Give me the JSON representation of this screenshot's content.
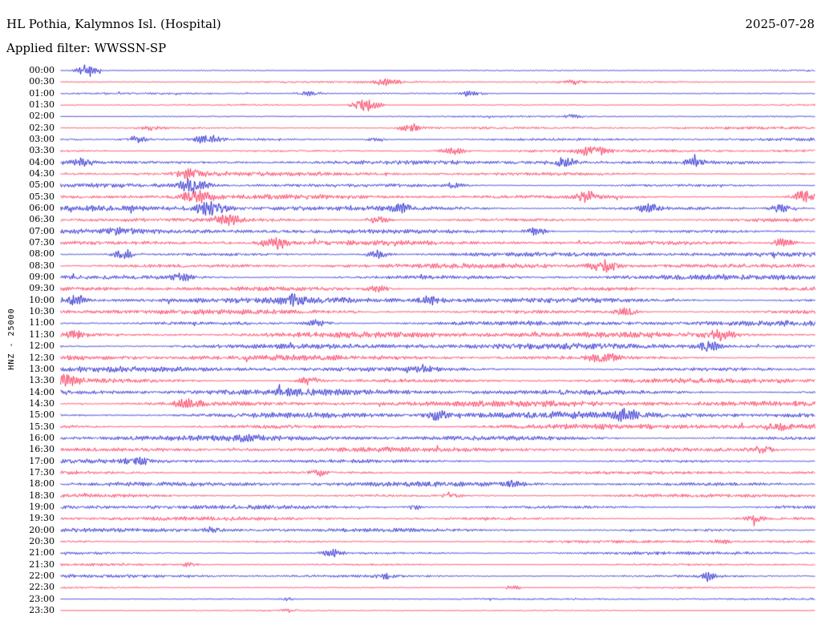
{
  "header": {
    "station_title": "HL Pothia, Kalymnos Isl. (Hospital)",
    "date": "2025-07-28",
    "filter_label": "Applied filter: WWSSN-SP"
  },
  "axis": {
    "channel_scale_label": "HNZ - 25000"
  },
  "chart_data": {
    "type": "line",
    "subtype": "helicorder-seismogram-24h",
    "title": "HL Pothia, Kalymnos Isl. (Hospital)",
    "date": "2025-07-28",
    "filter": "WWSSN-SP",
    "ylabel": "HNZ - 25000",
    "row_interval_minutes": 30,
    "minutes_per_row": 30,
    "grid": false,
    "legend": false,
    "colors": {
      "blue": "#1a1acd",
      "red": "#fa2850",
      "text": "#000000",
      "background": "#ffffff"
    },
    "rows": [
      {
        "time": "00:00",
        "color": "blue",
        "amp": 1.2
      },
      {
        "time": "00:30",
        "color": "red",
        "amp": 1.5
      },
      {
        "time": "01:00",
        "color": "blue",
        "amp": 1.3
      },
      {
        "time": "01:30",
        "color": "red",
        "amp": 1.5
      },
      {
        "time": "02:00",
        "color": "blue",
        "amp": 1.2
      },
      {
        "time": "02:30",
        "color": "red",
        "amp": 2.0
      },
      {
        "time": "03:00",
        "color": "blue",
        "amp": 2.5
      },
      {
        "time": "03:30",
        "color": "red",
        "amp": 2.5
      },
      {
        "time": "04:00",
        "color": "blue",
        "amp": 3.0
      },
      {
        "time": "04:30",
        "color": "red",
        "amp": 3.0
      },
      {
        "time": "05:00",
        "color": "blue",
        "amp": 3.0
      },
      {
        "time": "05:30",
        "color": "red",
        "amp": 3.5
      },
      {
        "time": "06:00",
        "color": "blue",
        "amp": 4.0
      },
      {
        "time": "06:30",
        "color": "red",
        "amp": 3.5
      },
      {
        "time": "07:00",
        "color": "blue",
        "amp": 3.5
      },
      {
        "time": "07:30",
        "color": "red",
        "amp": 3.5
      },
      {
        "time": "08:00",
        "color": "blue",
        "amp": 3.5
      },
      {
        "time": "08:30",
        "color": "red",
        "amp": 3.5
      },
      {
        "time": "09:00",
        "color": "blue",
        "amp": 4.0
      },
      {
        "time": "09:30",
        "color": "red",
        "amp": 4.0
      },
      {
        "time": "10:00",
        "color": "blue",
        "amp": 4.5
      },
      {
        "time": "10:30",
        "color": "red",
        "amp": 4.0
      },
      {
        "time": "11:00",
        "color": "blue",
        "amp": 4.0
      },
      {
        "time": "11:30",
        "color": "red",
        "amp": 4.5
      },
      {
        "time": "12:00",
        "color": "blue",
        "amp": 4.5
      },
      {
        "time": "12:30",
        "color": "red",
        "amp": 4.0
      },
      {
        "time": "13:00",
        "color": "blue",
        "amp": 4.0
      },
      {
        "time": "13:30",
        "color": "red",
        "amp": 4.0
      },
      {
        "time": "14:00",
        "color": "blue",
        "amp": 4.5
      },
      {
        "time": "14:30",
        "color": "red",
        "amp": 4.5
      },
      {
        "time": "15:00",
        "color": "blue",
        "amp": 5.0
      },
      {
        "time": "15:30",
        "color": "red",
        "amp": 4.5
      },
      {
        "time": "16:00",
        "color": "blue",
        "amp": 4.0
      },
      {
        "time": "16:30",
        "color": "red",
        "amp": 3.5
      },
      {
        "time": "17:00",
        "color": "blue",
        "amp": 3.0
      },
      {
        "time": "17:30",
        "color": "red",
        "amp": 3.0
      },
      {
        "time": "18:00",
        "color": "blue",
        "amp": 3.5
      },
      {
        "time": "18:30",
        "color": "red",
        "amp": 3.0
      },
      {
        "time": "19:00",
        "color": "blue",
        "amp": 3.5
      },
      {
        "time": "19:30",
        "color": "red",
        "amp": 3.0
      },
      {
        "time": "20:00",
        "color": "blue",
        "amp": 3.0
      },
      {
        "time": "20:30",
        "color": "red",
        "amp": 2.5
      },
      {
        "time": "21:00",
        "color": "blue",
        "amp": 2.5
      },
      {
        "time": "21:30",
        "color": "red",
        "amp": 2.0
      },
      {
        "time": "22:00",
        "color": "blue",
        "amp": 2.5
      },
      {
        "time": "22:30",
        "color": "red",
        "amp": 1.5
      },
      {
        "time": "23:00",
        "color": "blue",
        "amp": 1.5
      },
      {
        "time": "23:30",
        "color": "red",
        "amp": 1.0
      }
    ],
    "events": [
      {
        "row": 0,
        "x": 0.035,
        "a": 9,
        "w": 9
      },
      {
        "row": 1,
        "x": 0.43,
        "a": 3.5,
        "w": 12
      },
      {
        "row": 1,
        "x": 0.68,
        "a": 3,
        "w": 10
      },
      {
        "row": 2,
        "x": 0.33,
        "a": 3,
        "w": 10
      },
      {
        "row": 2,
        "x": 0.545,
        "a": 4,
        "w": 10
      },
      {
        "row": 3,
        "x": 0.405,
        "a": 8,
        "w": 12
      },
      {
        "row": 4,
        "x": 0.68,
        "a": 2.5,
        "w": 8
      },
      {
        "row": 5,
        "x": 0.12,
        "a": 3,
        "w": 9
      },
      {
        "row": 5,
        "x": 0.465,
        "a": 5,
        "w": 11
      },
      {
        "row": 6,
        "x": 0.1,
        "a": 4,
        "w": 10
      },
      {
        "row": 6,
        "x": 0.195,
        "a": 5,
        "w": 12
      },
      {
        "row": 6,
        "x": 0.42,
        "a": 3,
        "w": 8
      },
      {
        "row": 7,
        "x": 0.52,
        "a": 5,
        "w": 11
      },
      {
        "row": 7,
        "x": 0.705,
        "a": 6,
        "w": 12
      },
      {
        "row": 8,
        "x": 0.03,
        "a": 5,
        "w": 10
      },
      {
        "row": 8,
        "x": 0.665,
        "a": 6,
        "w": 13
      },
      {
        "row": 8,
        "x": 0.84,
        "a": 4,
        "w": 9
      },
      {
        "row": 9,
        "x": 0.17,
        "a": 6,
        "w": 12
      },
      {
        "row": 10,
        "x": 0.175,
        "a": 8,
        "w": 12
      },
      {
        "row": 10,
        "x": 0.52,
        "a": 3,
        "w": 8
      },
      {
        "row": 11,
        "x": 0.18,
        "a": 8,
        "w": 13
      },
      {
        "row": 11,
        "x": 0.7,
        "a": 6,
        "w": 11
      },
      {
        "row": 11,
        "x": 0.985,
        "a": 7,
        "w": 10
      },
      {
        "row": 12,
        "x": 0.2,
        "a": 9,
        "w": 14
      },
      {
        "row": 12,
        "x": 0.45,
        "a": 4,
        "w": 9
      },
      {
        "row": 12,
        "x": 0.78,
        "a": 5,
        "w": 10
      },
      {
        "row": 12,
        "x": 0.955,
        "a": 5,
        "w": 9
      },
      {
        "row": 13,
        "x": 0.22,
        "a": 6,
        "w": 11
      },
      {
        "row": 13,
        "x": 0.42,
        "a": 5,
        "w": 10
      },
      {
        "row": 14,
        "x": 0.08,
        "a": 4,
        "w": 9
      },
      {
        "row": 14,
        "x": 0.63,
        "a": 5,
        "w": 10
      },
      {
        "row": 15,
        "x": 0.285,
        "a": 7,
        "w": 12
      },
      {
        "row": 15,
        "x": 0.96,
        "a": 6,
        "w": 10
      },
      {
        "row": 16,
        "x": 0.085,
        "a": 6,
        "w": 11
      },
      {
        "row": 16,
        "x": 0.42,
        "a": 5,
        "w": 10
      },
      {
        "row": 17,
        "x": 0.72,
        "a": 8,
        "w": 12
      },
      {
        "row": 18,
        "x": 0.16,
        "a": 4,
        "w": 9
      },
      {
        "row": 19,
        "x": 0.42,
        "a": 4,
        "w": 9
      },
      {
        "row": 20,
        "x": 0.02,
        "a": 6,
        "w": 10
      },
      {
        "row": 20,
        "x": 0.31,
        "a": 5,
        "w": 10
      },
      {
        "row": 20,
        "x": 0.49,
        "a": 5,
        "w": 10
      },
      {
        "row": 21,
        "x": 0.75,
        "a": 5,
        "w": 10
      },
      {
        "row": 22,
        "x": 0.34,
        "a": 5,
        "w": 10
      },
      {
        "row": 23,
        "x": 0.02,
        "a": 5,
        "w": 9
      },
      {
        "row": 23,
        "x": 0.875,
        "a": 6,
        "w": 11
      },
      {
        "row": 24,
        "x": 0.86,
        "a": 6,
        "w": 11
      },
      {
        "row": 25,
        "x": 0.72,
        "a": 6,
        "w": 11
      },
      {
        "row": 26,
        "x": 0.48,
        "a": 4,
        "w": 9
      },
      {
        "row": 27,
        "x": 0.01,
        "a": 7,
        "w": 10
      },
      {
        "row": 27,
        "x": 0.33,
        "a": 5,
        "w": 10
      },
      {
        "row": 28,
        "x": 0.3,
        "a": 3,
        "w": 8
      },
      {
        "row": 29,
        "x": 0.17,
        "a": 6,
        "w": 11
      },
      {
        "row": 30,
        "x": 0.5,
        "a": 5,
        "w": 10
      },
      {
        "row": 30,
        "x": 0.75,
        "a": 6,
        "w": 11
      },
      {
        "row": 31,
        "x": 0.95,
        "a": 5,
        "w": 10
      },
      {
        "row": 32,
        "x": 0.25,
        "a": 3,
        "w": 8
      },
      {
        "row": 33,
        "x": 0.93,
        "a": 4,
        "w": 9
      },
      {
        "row": 34,
        "x": 0.1,
        "a": 5,
        "w": 10
      },
      {
        "row": 35,
        "x": 0.34,
        "a": 4,
        "w": 9
      },
      {
        "row": 36,
        "x": 0.6,
        "a": 3,
        "w": 8
      },
      {
        "row": 37,
        "x": 0.52,
        "a": 3,
        "w": 8
      },
      {
        "row": 38,
        "x": 0.47,
        "a": 3,
        "w": 8
      },
      {
        "row": 39,
        "x": 0.92,
        "a": 4,
        "w": 9
      },
      {
        "row": 40,
        "x": 0.2,
        "a": 3,
        "w": 8
      },
      {
        "row": 41,
        "x": 0.88,
        "a": 3,
        "w": 8
      },
      {
        "row": 42,
        "x": 0.36,
        "a": 4,
        "w": 9
      },
      {
        "row": 43,
        "x": 0.17,
        "a": 3,
        "w": 6
      },
      {
        "row": 44,
        "x": 0.43,
        "a": 3,
        "w": 8
      },
      {
        "row": 44,
        "x": 0.86,
        "a": 4,
        "w": 9
      },
      {
        "row": 45,
        "x": 0.6,
        "a": 3,
        "w": 8
      },
      {
        "row": 46,
        "x": 0.3,
        "a": 2,
        "w": 6
      },
      {
        "row": 47,
        "x": 0.3,
        "a": 2,
        "w": 6
      }
    ]
  }
}
